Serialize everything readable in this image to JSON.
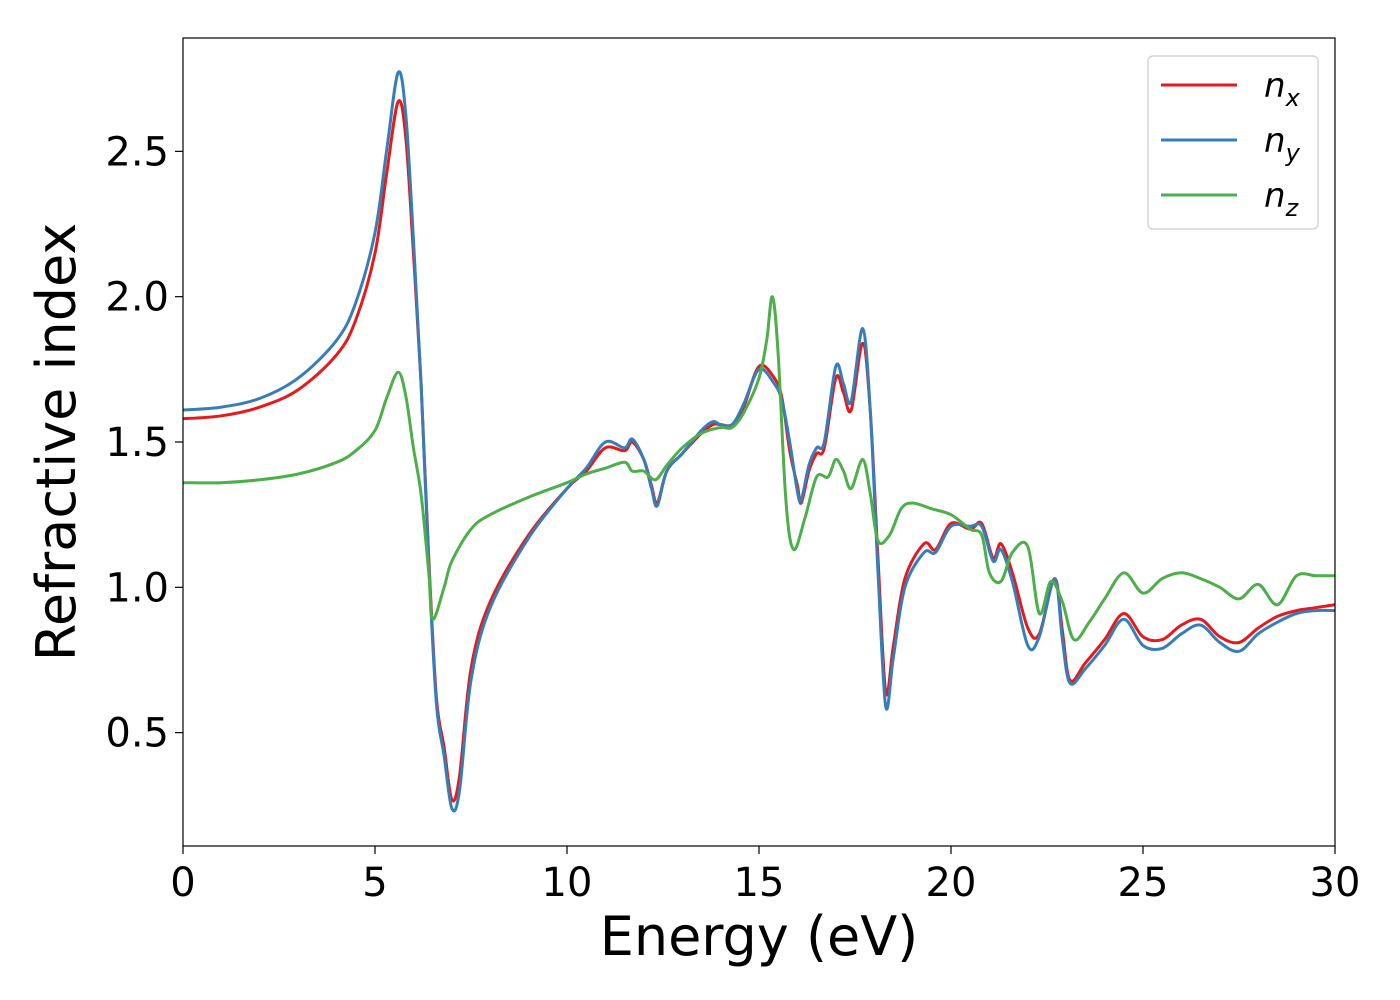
{
  "chart_data": {
    "type": "line",
    "title": "",
    "xlabel": "Energy (eV)",
    "ylabel": "Refractive index",
    "xlim": [
      0,
      30
    ],
    "ylim": [
      0.11,
      2.89
    ],
    "xticks": [
      0,
      5,
      10,
      15,
      20,
      25,
      30
    ],
    "xtick_labels": [
      "0",
      "5",
      "10",
      "15",
      "20",
      "25",
      "30"
    ],
    "yticks": [
      0.5,
      1.0,
      1.5,
      2.0,
      2.5
    ],
    "ytick_labels": [
      "0.5",
      "1.0",
      "1.5",
      "2.0",
      "2.5"
    ],
    "grid": false,
    "legend_position": "top-right",
    "series": [
      {
        "name": "n_x",
        "label_base": "n",
        "label_sub": "x",
        "color": "#e41a1c",
        "points": [
          [
            0,
            1.58
          ],
          [
            1,
            1.59
          ],
          [
            2,
            1.62
          ],
          [
            3,
            1.68
          ],
          [
            4,
            1.8
          ],
          [
            4.5,
            1.92
          ],
          [
            5,
            2.15
          ],
          [
            5.3,
            2.42
          ],
          [
            5.6,
            2.67
          ],
          [
            5.8,
            2.55
          ],
          [
            6.0,
            2.15
          ],
          [
            6.2,
            1.7
          ],
          [
            6.4,
            1.1
          ],
          [
            6.6,
            0.62
          ],
          [
            6.8,
            0.45
          ],
          [
            7.0,
            0.27
          ],
          [
            7.2,
            0.35
          ],
          [
            7.5,
            0.72
          ],
          [
            8,
            0.95
          ],
          [
            9,
            1.18
          ],
          [
            10,
            1.34
          ],
          [
            10.5,
            1.4
          ],
          [
            11,
            1.48
          ],
          [
            11.5,
            1.47
          ],
          [
            11.7,
            1.5
          ],
          [
            12,
            1.44
          ],
          [
            12.2,
            1.35
          ],
          [
            12.35,
            1.29
          ],
          [
            12.6,
            1.4
          ],
          [
            13,
            1.46
          ],
          [
            13.5,
            1.53
          ],
          [
            13.8,
            1.56
          ],
          [
            14,
            1.56
          ],
          [
            14.3,
            1.56
          ],
          [
            14.6,
            1.62
          ],
          [
            15,
            1.76
          ],
          [
            15.4,
            1.72
          ],
          [
            15.6,
            1.65
          ],
          [
            15.8,
            1.47
          ],
          [
            16,
            1.35
          ],
          [
            16.1,
            1.29
          ],
          [
            16.3,
            1.4
          ],
          [
            16.5,
            1.46
          ],
          [
            16.7,
            1.48
          ],
          [
            17,
            1.72
          ],
          [
            17.2,
            1.67
          ],
          [
            17.4,
            1.61
          ],
          [
            17.7,
            1.84
          ],
          [
            17.9,
            1.6
          ],
          [
            18.1,
            1.1
          ],
          [
            18.3,
            0.64
          ],
          [
            18.5,
            0.8
          ],
          [
            18.8,
            1.03
          ],
          [
            19.3,
            1.15
          ],
          [
            19.6,
            1.13
          ],
          [
            20,
            1.22
          ],
          [
            20.5,
            1.2
          ],
          [
            20.8,
            1.22
          ],
          [
            21.1,
            1.1
          ],
          [
            21.3,
            1.15
          ],
          [
            21.6,
            1.05
          ],
          [
            22,
            0.86
          ],
          [
            22.3,
            0.84
          ],
          [
            22.7,
            1.03
          ],
          [
            22.9,
            0.85
          ],
          [
            23.1,
            0.68
          ],
          [
            23.5,
            0.74
          ],
          [
            24,
            0.82
          ],
          [
            24.5,
            0.91
          ],
          [
            25,
            0.83
          ],
          [
            25.5,
            0.82
          ],
          [
            26,
            0.87
          ],
          [
            26.5,
            0.89
          ],
          [
            27,
            0.83
          ],
          [
            27.5,
            0.81
          ],
          [
            28,
            0.86
          ],
          [
            28.5,
            0.9
          ],
          [
            29,
            0.92
          ],
          [
            29.5,
            0.93
          ],
          [
            30,
            0.94
          ]
        ]
      },
      {
        "name": "n_y",
        "label_base": "n",
        "label_sub": "y",
        "color": "#377eb8",
        "points": [
          [
            0,
            1.61
          ],
          [
            1,
            1.62
          ],
          [
            2,
            1.65
          ],
          [
            3,
            1.72
          ],
          [
            4,
            1.85
          ],
          [
            4.5,
            1.98
          ],
          [
            5,
            2.22
          ],
          [
            5.3,
            2.5
          ],
          [
            5.6,
            2.77
          ],
          [
            5.8,
            2.63
          ],
          [
            6.0,
            2.2
          ],
          [
            6.2,
            1.7
          ],
          [
            6.4,
            1.08
          ],
          [
            6.6,
            0.6
          ],
          [
            6.8,
            0.42
          ],
          [
            7.0,
            0.24
          ],
          [
            7.2,
            0.3
          ],
          [
            7.5,
            0.68
          ],
          [
            8,
            0.93
          ],
          [
            9,
            1.17
          ],
          [
            10,
            1.34
          ],
          [
            10.5,
            1.41
          ],
          [
            11,
            1.5
          ],
          [
            11.5,
            1.48
          ],
          [
            11.7,
            1.51
          ],
          [
            12,
            1.44
          ],
          [
            12.2,
            1.34
          ],
          [
            12.35,
            1.28
          ],
          [
            12.6,
            1.4
          ],
          [
            13,
            1.46
          ],
          [
            13.5,
            1.54
          ],
          [
            13.8,
            1.57
          ],
          [
            14,
            1.56
          ],
          [
            14.3,
            1.56
          ],
          [
            14.6,
            1.63
          ],
          [
            15,
            1.75
          ],
          [
            15.4,
            1.7
          ],
          [
            15.6,
            1.64
          ],
          [
            15.8,
            1.5
          ],
          [
            16,
            1.33
          ],
          [
            16.1,
            1.3
          ],
          [
            16.3,
            1.42
          ],
          [
            16.5,
            1.48
          ],
          [
            16.7,
            1.5
          ],
          [
            17,
            1.76
          ],
          [
            17.2,
            1.7
          ],
          [
            17.4,
            1.64
          ],
          [
            17.7,
            1.89
          ],
          [
            17.9,
            1.6
          ],
          [
            18.1,
            1.05
          ],
          [
            18.3,
            0.59
          ],
          [
            18.5,
            0.76
          ],
          [
            18.8,
            1.0
          ],
          [
            19.3,
            1.12
          ],
          [
            19.6,
            1.12
          ],
          [
            20,
            1.21
          ],
          [
            20.5,
            1.21
          ],
          [
            20.8,
            1.21
          ],
          [
            21.1,
            1.09
          ],
          [
            21.3,
            1.13
          ],
          [
            21.6,
            1.02
          ],
          [
            22,
            0.8
          ],
          [
            22.3,
            0.83
          ],
          [
            22.7,
            1.03
          ],
          [
            22.9,
            0.82
          ],
          [
            23.1,
            0.67
          ],
          [
            23.5,
            0.72
          ],
          [
            24,
            0.8
          ],
          [
            24.5,
            0.89
          ],
          [
            25,
            0.8
          ],
          [
            25.5,
            0.79
          ],
          [
            26,
            0.84
          ],
          [
            26.5,
            0.87
          ],
          [
            27,
            0.81
          ],
          [
            27.5,
            0.78
          ],
          [
            28,
            0.84
          ],
          [
            28.5,
            0.88
          ],
          [
            29,
            0.91
          ],
          [
            29.5,
            0.92
          ],
          [
            30,
            0.92
          ]
        ]
      },
      {
        "name": "n_z",
        "label_base": "n",
        "label_sub": "z",
        "color": "#4daf4a",
        "points": [
          [
            0,
            1.36
          ],
          [
            1,
            1.36
          ],
          [
            2,
            1.37
          ],
          [
            3,
            1.39
          ],
          [
            4,
            1.43
          ],
          [
            4.5,
            1.47
          ],
          [
            5,
            1.54
          ],
          [
            5.3,
            1.65
          ],
          [
            5.6,
            1.74
          ],
          [
            5.8,
            1.66
          ],
          [
            6.0,
            1.48
          ],
          [
            6.2,
            1.32
          ],
          [
            6.4,
            1.05
          ],
          [
            6.5,
            0.89
          ],
          [
            6.8,
            1.0
          ],
          [
            7,
            1.09
          ],
          [
            7.5,
            1.2
          ],
          [
            8,
            1.25
          ],
          [
            9,
            1.31
          ],
          [
            10,
            1.36
          ],
          [
            10.5,
            1.39
          ],
          [
            11,
            1.41
          ],
          [
            11.5,
            1.43
          ],
          [
            11.7,
            1.4
          ],
          [
            12,
            1.4
          ],
          [
            12.3,
            1.37
          ],
          [
            12.6,
            1.42
          ],
          [
            13,
            1.48
          ],
          [
            13.5,
            1.53
          ],
          [
            14,
            1.55
          ],
          [
            14.3,
            1.55
          ],
          [
            14.6,
            1.6
          ],
          [
            15,
            1.72
          ],
          [
            15.2,
            1.85
          ],
          [
            15.35,
            2.0
          ],
          [
            15.5,
            1.8
          ],
          [
            15.7,
            1.3
          ],
          [
            15.9,
            1.13
          ],
          [
            16.2,
            1.24
          ],
          [
            16.5,
            1.38
          ],
          [
            16.8,
            1.38
          ],
          [
            17,
            1.44
          ],
          [
            17.2,
            1.4
          ],
          [
            17.4,
            1.34
          ],
          [
            17.7,
            1.44
          ],
          [
            17.9,
            1.32
          ],
          [
            18.1,
            1.16
          ],
          [
            18.4,
            1.18
          ],
          [
            18.7,
            1.27
          ],
          [
            19,
            1.29
          ],
          [
            19.5,
            1.27
          ],
          [
            20,
            1.25
          ],
          [
            20.5,
            1.2
          ],
          [
            20.8,
            1.18
          ],
          [
            21,
            1.05
          ],
          [
            21.3,
            1.02
          ],
          [
            21.6,
            1.12
          ],
          [
            22,
            1.14
          ],
          [
            22.3,
            0.91
          ],
          [
            22.6,
            1.02
          ],
          [
            22.9,
            0.95
          ],
          [
            23.2,
            0.82
          ],
          [
            23.6,
            0.88
          ],
          [
            24,
            0.96
          ],
          [
            24.5,
            1.05
          ],
          [
            25,
            0.98
          ],
          [
            25.5,
            1.03
          ],
          [
            26,
            1.05
          ],
          [
            26.5,
            1.03
          ],
          [
            27,
            1.0
          ],
          [
            27.5,
            0.96
          ],
          [
            28,
            1.01
          ],
          [
            28.5,
            0.94
          ],
          [
            29,
            1.04
          ],
          [
            29.5,
            1.04
          ],
          [
            30,
            1.04
          ]
        ]
      }
    ]
  }
}
